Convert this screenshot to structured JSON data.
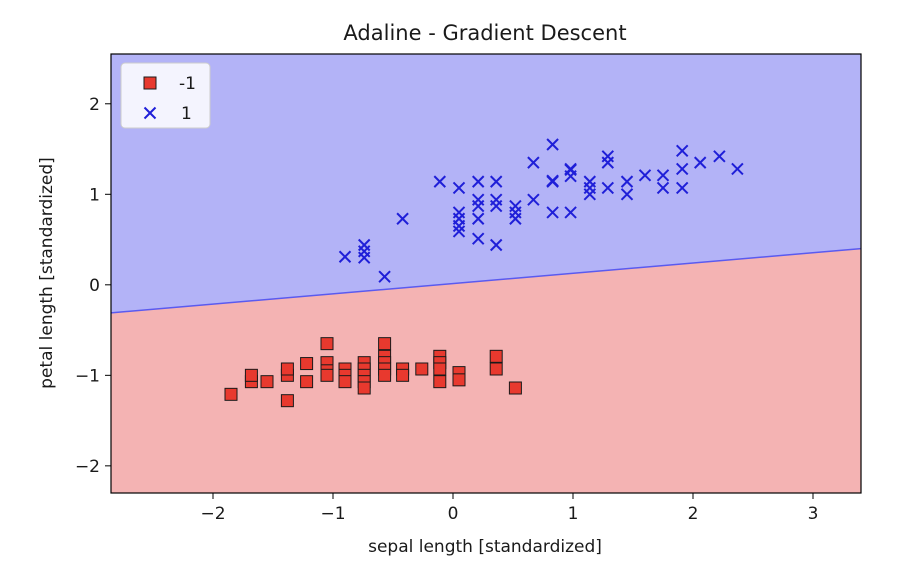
{
  "chart_data": {
    "type": "scatter",
    "title": "Adaline - Gradient Descent",
    "xlabel": "sepal length [standardized]",
    "ylabel": "petal length [standardized]",
    "xlim": [
      -2.85,
      3.4
    ],
    "ylim": [
      -2.3,
      2.55
    ],
    "xticks": [
      {
        "value": -2,
        "label": "−2"
      },
      {
        "value": -1,
        "label": "−1"
      },
      {
        "value": 0,
        "label": "0"
      },
      {
        "value": 1,
        "label": "1"
      },
      {
        "value": 2,
        "label": "2"
      },
      {
        "value": 3,
        "label": "3"
      }
    ],
    "yticks": [
      {
        "value": -2,
        "label": "−2"
      },
      {
        "value": -1,
        "label": "−1"
      },
      {
        "value": 0,
        "label": "0"
      },
      {
        "value": 1,
        "label": "1"
      },
      {
        "value": 2,
        "label": "2"
      }
    ],
    "grid": false,
    "legend_position": "top-left",
    "decision_boundary": {
      "x": [
        -2.85,
        3.4
      ],
      "y": [
        -0.31,
        0.4
      ]
    },
    "regions": [
      {
        "class": "-1",
        "side": "below",
        "color": "#f4b3b3"
      },
      {
        "class": "1",
        "side": "above",
        "color": "#b3b3f7"
      }
    ],
    "series": [
      {
        "name": "-1",
        "marker": "square",
        "color": "#e8392e",
        "edge_color": "#1a1a1a",
        "points": [
          [
            -1.85,
            -1.21
          ],
          [
            -1.68,
            -1.07
          ],
          [
            -1.68,
            -1.0
          ],
          [
            -1.55,
            -1.07
          ],
          [
            -1.38,
            -1.28
          ],
          [
            -1.38,
            -1.0
          ],
          [
            -1.38,
            -0.93
          ],
          [
            -1.22,
            -1.07
          ],
          [
            -1.22,
            -0.87
          ],
          [
            -1.05,
            -0.65
          ],
          [
            -1.05,
            -0.86
          ],
          [
            -1.05,
            -0.95
          ],
          [
            -1.05,
            -1.0
          ],
          [
            -0.9,
            -0.93
          ],
          [
            -0.9,
            -1.0
          ],
          [
            -0.9,
            -1.07
          ],
          [
            -0.74,
            -0.86
          ],
          [
            -0.74,
            -0.93
          ],
          [
            -0.74,
            -1.0
          ],
          [
            -0.74,
            -1.07
          ],
          [
            -0.74,
            -1.14
          ],
          [
            -0.57,
            -0.65
          ],
          [
            -0.57,
            -0.79
          ],
          [
            -0.57,
            -0.86
          ],
          [
            -0.57,
            -0.93
          ],
          [
            -0.57,
            -1.0
          ],
          [
            -0.42,
            -0.93
          ],
          [
            -0.42,
            -1.0
          ],
          [
            -0.26,
            -0.93
          ],
          [
            -0.11,
            -0.79
          ],
          [
            -0.11,
            -0.86
          ],
          [
            -0.11,
            -0.93
          ],
          [
            -0.11,
            -1.07
          ],
          [
            0.05,
            -0.97
          ],
          [
            0.05,
            -1.05
          ],
          [
            0.36,
            -0.79
          ],
          [
            0.36,
            -0.93
          ],
          [
            0.52,
            -1.14
          ]
        ]
      },
      {
        "name": "1",
        "marker": "x",
        "color": "#1f1fd8",
        "points": [
          [
            -0.9,
            0.31
          ],
          [
            -0.74,
            0.44
          ],
          [
            -0.74,
            0.37
          ],
          [
            -0.74,
            0.3
          ],
          [
            -0.57,
            0.09
          ],
          [
            -0.42,
            0.73
          ],
          [
            -0.11,
            1.14
          ],
          [
            0.05,
            0.59
          ],
          [
            0.05,
            0.65
          ],
          [
            0.05,
            0.73
          ],
          [
            0.05,
            0.8
          ],
          [
            0.05,
            1.07
          ],
          [
            0.21,
            0.51
          ],
          [
            0.21,
            0.73
          ],
          [
            0.21,
            0.87
          ],
          [
            0.21,
            0.94
          ],
          [
            0.21,
            1.14
          ],
          [
            0.36,
            0.44
          ],
          [
            0.36,
            0.87
          ],
          [
            0.36,
            0.94
          ],
          [
            0.36,
            1.14
          ],
          [
            0.52,
            0.73
          ],
          [
            0.52,
            0.8
          ],
          [
            0.52,
            0.87
          ],
          [
            0.67,
            0.94
          ],
          [
            0.67,
            1.35
          ],
          [
            0.83,
            0.8
          ],
          [
            0.83,
            1.14
          ],
          [
            0.83,
            1.15
          ],
          [
            0.83,
            1.55
          ],
          [
            0.98,
            0.8
          ],
          [
            0.98,
            1.2
          ],
          [
            0.98,
            1.27
          ],
          [
            0.98,
            1.28
          ],
          [
            1.14,
            1.0
          ],
          [
            1.14,
            1.07
          ],
          [
            1.14,
            1.14
          ],
          [
            1.29,
            1.07
          ],
          [
            1.29,
            1.35
          ],
          [
            1.29,
            1.42
          ],
          [
            1.45,
            1.0
          ],
          [
            1.45,
            1.14
          ],
          [
            1.6,
            1.21
          ],
          [
            1.75,
            1.07
          ],
          [
            1.75,
            1.21
          ],
          [
            1.91,
            1.07
          ],
          [
            1.91,
            1.28
          ],
          [
            1.91,
            1.48
          ],
          [
            2.06,
            1.35
          ],
          [
            2.22,
            1.42
          ],
          [
            2.37,
            1.28
          ]
        ]
      }
    ]
  }
}
